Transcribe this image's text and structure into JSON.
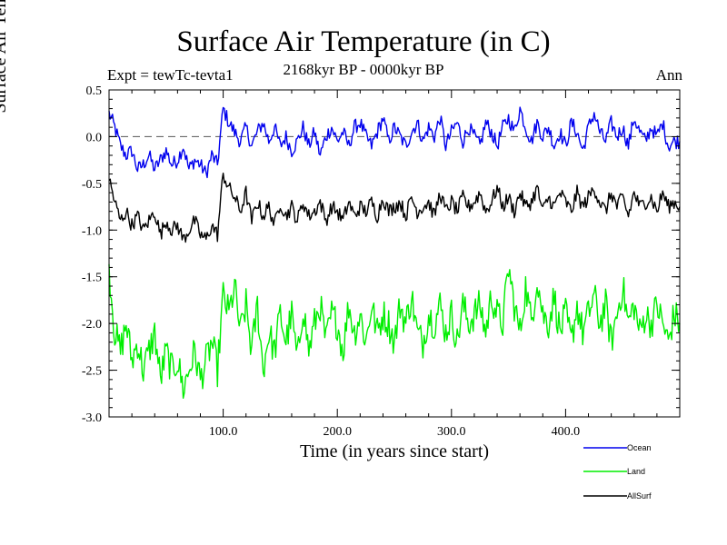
{
  "chart_data": {
    "type": "line",
    "title": "Surface Air Temperature (in C)",
    "subtitle": "2168kyr BP - 0000kyr BP",
    "expt_label": "Expt = tewTc-tevta1",
    "season_label": "Ann",
    "xlabel": "Time (in years since start)",
    "ylabel": "Surface Air Temperature (in C)",
    "xlim": [
      0,
      500
    ],
    "ylim": [
      -3.0,
      0.5
    ],
    "xticks": [
      100,
      200,
      300,
      400
    ],
    "xtick_labels": [
      "100.0",
      "200.0",
      "300.0",
      "400.0"
    ],
    "yticks": [
      0.5,
      0.0,
      -0.5,
      -1.0,
      -1.5,
      -2.0,
      -2.5,
      -3.0
    ],
    "ytick_labels": [
      "0.5",
      "0.0",
      "-0.5",
      "-1.0",
      "-1.5",
      "-2.0",
      "-2.5",
      "-3.0"
    ],
    "zero_line": 0.0,
    "legend_position": "bottom-right, below plot",
    "x": [
      0,
      5,
      10,
      15,
      20,
      25,
      30,
      35,
      40,
      45,
      50,
      55,
      60,
      65,
      70,
      75,
      80,
      85,
      90,
      95,
      100,
      105,
      110,
      115,
      120,
      125,
      130,
      135,
      140,
      145,
      150,
      155,
      160,
      165,
      170,
      175,
      180,
      185,
      190,
      195,
      200,
      205,
      210,
      215,
      220,
      225,
      230,
      235,
      240,
      245,
      250,
      255,
      260,
      265,
      270,
      275,
      280,
      285,
      290,
      295,
      300,
      305,
      310,
      315,
      320,
      325,
      330,
      335,
      340,
      345,
      350,
      355,
      360,
      365,
      370,
      375,
      380,
      385,
      390,
      395,
      400,
      405,
      410,
      415,
      420,
      425,
      430,
      435,
      440,
      445,
      450,
      455,
      460,
      465,
      470,
      475,
      480,
      485,
      490,
      495,
      500
    ],
    "series": [
      {
        "name": "Ocean",
        "color": "#0000ee",
        "values": [
          0.25,
          0.1,
          -0.1,
          -0.2,
          -0.15,
          -0.35,
          -0.3,
          -0.2,
          -0.35,
          -0.25,
          -0.15,
          -0.3,
          -0.25,
          -0.1,
          -0.35,
          -0.25,
          -0.3,
          -0.4,
          -0.2,
          -0.3,
          0.3,
          0.15,
          0.05,
          -0.05,
          0.1,
          -0.1,
          0.05,
          0.15,
          -0.05,
          0.1,
          -0.1,
          0.0,
          -0.15,
          -0.05,
          0.1,
          -0.1,
          0.05,
          -0.2,
          0.0,
          0.1,
          -0.05,
          0.05,
          -0.1,
          0.1,
          0.15,
          0.0,
          -0.1,
          0.05,
          0.2,
          -0.05,
          0.1,
          0.0,
          -0.1,
          0.05,
          0.15,
          -0.05,
          0.1,
          0.0,
          0.2,
          -0.1,
          0.05,
          0.15,
          -0.05,
          0.1,
          0.0,
          -0.1,
          0.15,
          0.05,
          -0.1,
          0.1,
          0.2,
          0.05,
          0.3,
          0.1,
          -0.05,
          0.15,
          0.0,
          0.1,
          -0.1,
          0.05,
          -0.1,
          0.15,
          0.05,
          -0.15,
          0.1,
          0.25,
          0.05,
          -0.05,
          0.15,
          0.0,
          0.1,
          -0.1,
          0.2,
          0.05,
          -0.05,
          0.1,
          0.0,
          0.15,
          -0.1,
          -0.05,
          -0.05
        ]
      },
      {
        "name": "Land",
        "color": "#00ee00",
        "values": [
          -1.4,
          -2.1,
          -2.3,
          -2.0,
          -2.4,
          -2.2,
          -2.5,
          -2.3,
          -2.1,
          -2.6,
          -2.3,
          -2.5,
          -2.4,
          -2.7,
          -2.5,
          -2.3,
          -2.6,
          -2.4,
          -2.2,
          -2.5,
          -1.7,
          -1.9,
          -1.6,
          -2.1,
          -1.8,
          -2.3,
          -1.8,
          -2.5,
          -2.1,
          -2.3,
          -1.9,
          -2.2,
          -1.9,
          -2.4,
          -1.8,
          -2.3,
          -2.0,
          -1.8,
          -2.2,
          -1.9,
          -2.0,
          -2.3,
          -1.8,
          -2.1,
          -1.9,
          -2.2,
          -1.8,
          -2.1,
          -1.9,
          -2.0,
          -2.2,
          -1.8,
          -2.0,
          -1.7,
          -2.1,
          -2.2,
          -1.9,
          -2.0,
          -1.8,
          -2.1,
          -1.9,
          -2.2,
          -1.8,
          -2.0,
          -1.9,
          -1.8,
          -2.1,
          -1.7,
          -1.9,
          -2.0,
          -1.4,
          -1.8,
          -2.1,
          -1.6,
          -2.0,
          -1.5,
          -1.9,
          -2.0,
          -1.7,
          -2.1,
          -1.9,
          -2.2,
          -1.8,
          -2.1,
          -1.9,
          -1.7,
          -2.0,
          -1.8,
          -2.2,
          -1.9,
          -1.6,
          -2.0,
          -1.8,
          -2.1,
          -1.9,
          -2.0,
          -1.8,
          -2.0,
          -2.2,
          -1.9,
          -2.0
        ]
      },
      {
        "name": "AllSurf",
        "color": "#000000",
        "values": [
          -0.45,
          -0.7,
          -0.9,
          -0.8,
          -0.95,
          -0.85,
          -1.0,
          -0.9,
          -0.8,
          -1.05,
          -0.9,
          -1.0,
          -0.95,
          -1.1,
          -1.0,
          -0.9,
          -1.05,
          -1.1,
          -0.95,
          -1.05,
          -0.4,
          -0.55,
          -0.65,
          -0.8,
          -0.6,
          -0.9,
          -0.7,
          -0.85,
          -0.75,
          -0.95,
          -0.7,
          -0.85,
          -0.75,
          -0.9,
          -0.7,
          -0.85,
          -0.8,
          -0.7,
          -0.9,
          -0.75,
          -0.8,
          -0.9,
          -0.7,
          -0.85,
          -0.75,
          -0.8,
          -0.7,
          -0.85,
          -0.65,
          -0.8,
          -0.75,
          -0.7,
          -0.85,
          -0.65,
          -0.8,
          -0.75,
          -0.7,
          -0.85,
          -0.6,
          -0.8,
          -0.7,
          -0.8,
          -0.65,
          -0.75,
          -0.7,
          -0.6,
          -0.8,
          -0.7,
          -0.55,
          -0.75,
          -0.65,
          -0.8,
          -0.6,
          -0.75,
          -0.7,
          -0.55,
          -0.8,
          -0.65,
          -0.75,
          -0.6,
          -0.7,
          -0.8,
          -0.6,
          -0.75,
          -0.65,
          -0.55,
          -0.7,
          -0.8,
          -0.6,
          -0.75,
          -0.65,
          -0.85,
          -0.6,
          -0.75,
          -0.7,
          -0.65,
          -0.8,
          -0.6,
          -0.75,
          -0.7,
          -0.75
        ]
      }
    ]
  }
}
